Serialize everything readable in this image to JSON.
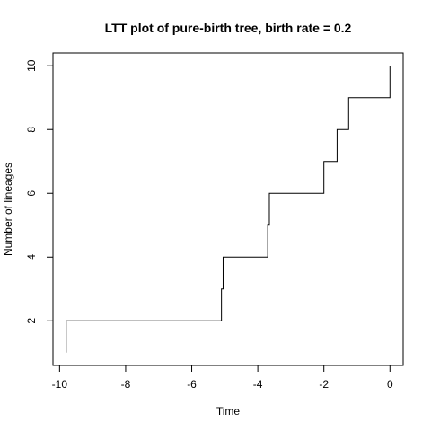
{
  "chart_data": {
    "type": "line",
    "style": "step",
    "title": "LTT plot of pure-birth tree, birth rate =  0.2",
    "xlabel": "Time",
    "ylabel": "Number of lineages",
    "xlim": [
      -10.2,
      0.4
    ],
    "ylim": [
      0.6,
      10.4
    ],
    "x_ticks": [
      -10,
      -8,
      -6,
      -4,
      -2,
      0
    ],
    "x_tick_labels": [
      "-10",
      "-8",
      "-6",
      "-4",
      "-2",
      "0"
    ],
    "y_ticks": [
      2,
      4,
      6,
      8,
      10
    ],
    "y_tick_labels": [
      "2",
      "4",
      "6",
      "8",
      "10"
    ],
    "grid": false,
    "line_color": "#000000",
    "series": [
      {
        "x": [
          -9.8,
          -6.65,
          -5.1,
          -5.05,
          -3.7,
          -3.65,
          -2.0,
          -1.6,
          -1.25,
          0
        ],
        "y": [
          1,
          2,
          3,
          4,
          5,
          6,
          7,
          8,
          9,
          10
        ]
      }
    ]
  }
}
